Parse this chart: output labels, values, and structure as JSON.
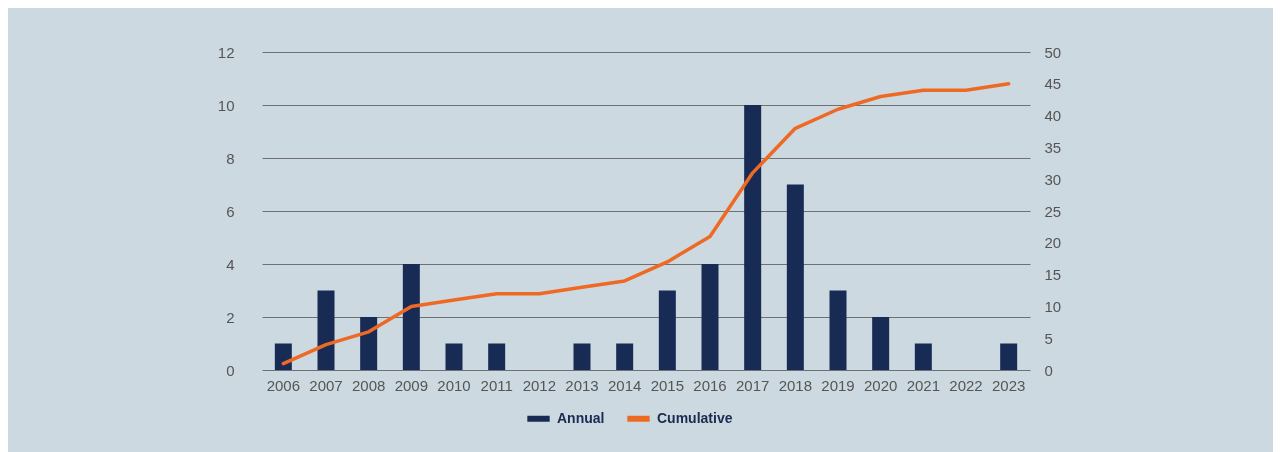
{
  "chart_data": {
    "type": "bar",
    "categories": [
      "2006",
      "2007",
      "2008",
      "2009",
      "2010",
      "2011",
      "2012",
      "2013",
      "2014",
      "2015",
      "2016",
      "2017",
      "2018",
      "2019",
      "2020",
      "2021",
      "2022",
      "2023"
    ],
    "series": [
      {
        "name": "Annual",
        "color": "#172b54",
        "values": [
          1,
          3,
          2,
          4,
          1,
          1,
          0,
          1,
          1,
          3,
          4,
          10,
          7,
          3,
          2,
          1,
          0,
          1
        ]
      },
      {
        "name": "Cumulative",
        "type": "line",
        "axis": "y2",
        "color": "#ee6a24",
        "values": [
          1,
          4,
          6,
          10,
          11,
          12,
          12,
          13,
          14,
          17,
          21,
          31,
          38,
          41,
          43,
          44,
          44,
          45
        ]
      }
    ],
    "ylim": [
      0,
      12
    ],
    "yticks": [
      0,
      2,
      4,
      6,
      8,
      10,
      12
    ],
    "y2lim": [
      0,
      50
    ],
    "y2ticks": [
      0,
      5,
      10,
      15,
      20,
      25,
      30,
      35,
      40,
      45,
      50
    ],
    "grid": "y",
    "legend": "bottom",
    "line_style": "solid"
  }
}
